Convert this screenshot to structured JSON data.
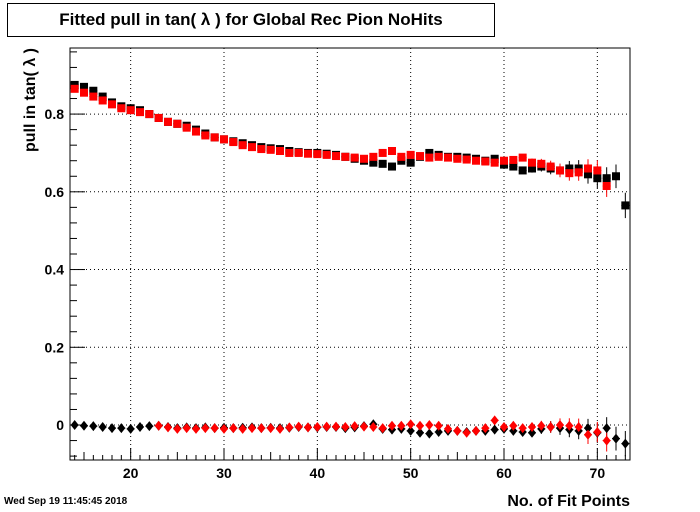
{
  "timestamp": "Wed Sep 19 11:45:45 2018",
  "chart_data": {
    "type": "scatter",
    "title": "Fitted pull in tan( λ ) for Global Rec Pion NoHits",
    "xlabel": "No. of Fit Points",
    "ylabel": "pull in tan( λ )",
    "xlim": [
      13.5,
      73.5
    ],
    "ylim": [
      -0.09,
      0.97
    ],
    "x_ticks": [
      20,
      30,
      40,
      50,
      60,
      70
    ],
    "x_tick_labels": [
      "20",
      "30",
      "40",
      "50",
      "60",
      "70"
    ],
    "y_ticks": [
      0,
      0.2,
      0.4,
      0.6,
      0.8
    ],
    "y_tick_labels": [
      "0",
      "0.2",
      "0.4",
      "0.6",
      "0.8"
    ],
    "grid": true,
    "series": [
      {
        "marker": "square",
        "color": "#000000",
        "points": [
          [
            14,
            0.875
          ],
          [
            15,
            0.87
          ],
          [
            16,
            0.86
          ],
          [
            17,
            0.845
          ],
          [
            18,
            0.83
          ],
          [
            19,
            0.82
          ],
          [
            20,
            0.815
          ],
          [
            21,
            0.81
          ],
          [
            22,
            0.8
          ],
          [
            23,
            0.79
          ],
          [
            24,
            0.78
          ],
          [
            25,
            0.775
          ],
          [
            26,
            0.77
          ],
          [
            27,
            0.76
          ],
          [
            28,
            0.75
          ],
          [
            29,
            0.74
          ],
          [
            30,
            0.735
          ],
          [
            31,
            0.73
          ],
          [
            32,
            0.725
          ],
          [
            33,
            0.72
          ],
          [
            34,
            0.715
          ],
          [
            35,
            0.712
          ],
          [
            36,
            0.71
          ],
          [
            37,
            0.705
          ],
          [
            38,
            0.702
          ],
          [
            39,
            0.7
          ],
          [
            40,
            0.7
          ],
          [
            41,
            0.698
          ],
          [
            42,
            0.695
          ],
          [
            43,
            0.69
          ],
          [
            44,
            0.685
          ],
          [
            45,
            0.68
          ],
          [
            46,
            0.675
          ],
          [
            47,
            0.672
          ],
          [
            48,
            0.665
          ],
          [
            49,
            0.68
          ],
          [
            50,
            0.675
          ],
          [
            51,
            0.69
          ],
          [
            52,
            0.7
          ],
          [
            53,
            0.695
          ],
          [
            54,
            0.69
          ],
          [
            55,
            0.69
          ],
          [
            56,
            0.688
          ],
          [
            57,
            0.685
          ],
          [
            58,
            0.68
          ],
          [
            59,
            0.685
          ],
          [
            60,
            0.67
          ],
          [
            61,
            0.665
          ],
          [
            62,
            0.655
          ],
          [
            63,
            0.66
          ],
          [
            64,
            0.665
          ],
          [
            65,
            0.66
          ],
          [
            66,
            0.655
          ],
          [
            67,
            0.66
          ],
          [
            68,
            0.66
          ],
          [
            69,
            0.645
          ],
          [
            70,
            0.635
          ],
          [
            71,
            0.635
          ],
          [
            72,
            0.64
          ],
          [
            73,
            0.565
          ]
        ]
      },
      {
        "marker": "square",
        "color": "#ff0000",
        "points": [
          [
            14,
            0.865
          ],
          [
            15,
            0.855
          ],
          [
            16,
            0.845
          ],
          [
            17,
            0.835
          ],
          [
            18,
            0.825
          ],
          [
            19,
            0.815
          ],
          [
            20,
            0.81
          ],
          [
            21,
            0.805
          ],
          [
            22,
            0.8
          ],
          [
            23,
            0.79
          ],
          [
            24,
            0.78
          ],
          [
            25,
            0.775
          ],
          [
            26,
            0.765
          ],
          [
            27,
            0.755
          ],
          [
            28,
            0.745
          ],
          [
            29,
            0.74
          ],
          [
            30,
            0.735
          ],
          [
            31,
            0.728
          ],
          [
            32,
            0.72
          ],
          [
            33,
            0.715
          ],
          [
            34,
            0.71
          ],
          [
            35,
            0.708
          ],
          [
            36,
            0.705
          ],
          [
            37,
            0.7
          ],
          [
            38,
            0.7
          ],
          [
            39,
            0.698
          ],
          [
            40,
            0.697
          ],
          [
            41,
            0.695
          ],
          [
            42,
            0.692
          ],
          [
            43,
            0.69
          ],
          [
            44,
            0.688
          ],
          [
            45,
            0.685
          ],
          [
            46,
            0.69
          ],
          [
            47,
            0.7
          ],
          [
            48,
            0.705
          ],
          [
            49,
            0.69
          ],
          [
            50,
            0.695
          ],
          [
            51,
            0.692
          ],
          [
            52,
            0.688
          ],
          [
            53,
            0.69
          ],
          [
            54,
            0.688
          ],
          [
            55,
            0.685
          ],
          [
            56,
            0.683
          ],
          [
            57,
            0.68
          ],
          [
            58,
            0.678
          ],
          [
            59,
            0.675
          ],
          [
            60,
            0.68
          ],
          [
            61,
            0.682
          ],
          [
            62,
            0.688
          ],
          [
            63,
            0.675
          ],
          [
            64,
            0.672
          ],
          [
            65,
            0.665
          ],
          [
            66,
            0.655
          ],
          [
            67,
            0.648
          ],
          [
            68,
            0.65
          ],
          [
            69,
            0.66
          ],
          [
            70,
            0.655
          ],
          [
            71,
            0.615
          ]
        ]
      },
      {
        "marker": "diamond",
        "color": "#000000",
        "points": [
          [
            14,
            0.0
          ],
          [
            15,
            -0.002
          ],
          [
            16,
            -0.003
          ],
          [
            17,
            -0.005
          ],
          [
            18,
            -0.008
          ],
          [
            19,
            -0.008
          ],
          [
            20,
            -0.01
          ],
          [
            21,
            -0.005
          ],
          [
            22,
            -0.003
          ],
          [
            23,
            -0.002
          ],
          [
            24,
            -0.005
          ],
          [
            25,
            -0.008
          ],
          [
            26,
            -0.006
          ],
          [
            27,
            -0.008
          ],
          [
            28,
            -0.006
          ],
          [
            29,
            -0.008
          ],
          [
            30,
            -0.007
          ],
          [
            31,
            -0.008
          ],
          [
            32,
            -0.007
          ],
          [
            33,
            -0.006
          ],
          [
            34,
            -0.008
          ],
          [
            35,
            -0.007
          ],
          [
            36,
            -0.008
          ],
          [
            37,
            -0.007
          ],
          [
            38,
            -0.005
          ],
          [
            39,
            -0.006
          ],
          [
            40,
            -0.006
          ],
          [
            41,
            -0.005
          ],
          [
            42,
            -0.005
          ],
          [
            43,
            -0.008
          ],
          [
            44,
            -0.006
          ],
          [
            45,
            -0.003
          ],
          [
            46,
            0.002
          ],
          [
            47,
            -0.01
          ],
          [
            48,
            -0.012
          ],
          [
            49,
            -0.01
          ],
          [
            50,
            -0.015
          ],
          [
            51,
            -0.02
          ],
          [
            52,
            -0.022
          ],
          [
            53,
            -0.018
          ],
          [
            54,
            -0.015
          ],
          [
            55,
            -0.015
          ],
          [
            56,
            -0.018
          ],
          [
            57,
            -0.015
          ],
          [
            58,
            -0.015
          ],
          [
            59,
            -0.012
          ],
          [
            60,
            -0.01
          ],
          [
            61,
            -0.015
          ],
          [
            62,
            -0.018
          ],
          [
            63,
            -0.02
          ],
          [
            64,
            -0.01
          ],
          [
            65,
            -0.005
          ],
          [
            66,
            -0.008
          ],
          [
            67,
            -0.012
          ],
          [
            68,
            -0.015
          ],
          [
            69,
            -0.008
          ],
          [
            70,
            -0.02
          ],
          [
            71,
            -0.008
          ],
          [
            72,
            -0.035
          ],
          [
            73,
            -0.048
          ]
        ]
      },
      {
        "marker": "diamond",
        "color": "#ff0000",
        "points": [
          [
            23,
            -0.002
          ],
          [
            24,
            -0.006
          ],
          [
            25,
            -0.01
          ],
          [
            26,
            -0.008
          ],
          [
            27,
            -0.01
          ],
          [
            28,
            -0.008
          ],
          [
            29,
            -0.008
          ],
          [
            30,
            -0.01
          ],
          [
            31,
            -0.008
          ],
          [
            32,
            -0.01
          ],
          [
            33,
            -0.008
          ],
          [
            34,
            -0.008
          ],
          [
            35,
            -0.008
          ],
          [
            36,
            -0.01
          ],
          [
            37,
            -0.006
          ],
          [
            38,
            -0.004
          ],
          [
            39,
            -0.006
          ],
          [
            40,
            -0.005
          ],
          [
            41,
            -0.004
          ],
          [
            42,
            -0.004
          ],
          [
            43,
            -0.005
          ],
          [
            44,
            -0.003
          ],
          [
            45,
            -0.004
          ],
          [
            46,
            -0.005
          ],
          [
            47,
            -0.008
          ],
          [
            48,
            -0.002
          ],
          [
            49,
            -0.002
          ],
          [
            50,
            0.002
          ],
          [
            51,
            -0.002
          ],
          [
            52,
            0.0
          ],
          [
            53,
            -0.002
          ],
          [
            54,
            -0.01
          ],
          [
            55,
            -0.015
          ],
          [
            56,
            -0.02
          ],
          [
            57,
            -0.015
          ],
          [
            58,
            -0.008
          ],
          [
            59,
            0.012
          ],
          [
            60,
            -0.005
          ],
          [
            61,
            -0.002
          ],
          [
            62,
            -0.008
          ],
          [
            63,
            -0.005
          ],
          [
            64,
            -0.002
          ],
          [
            65,
            -0.005
          ],
          [
            66,
            0.0
          ],
          [
            67,
            -0.002
          ],
          [
            68,
            -0.005
          ],
          [
            69,
            -0.025
          ],
          [
            70,
            -0.018
          ],
          [
            71,
            -0.04
          ]
        ]
      }
    ]
  }
}
